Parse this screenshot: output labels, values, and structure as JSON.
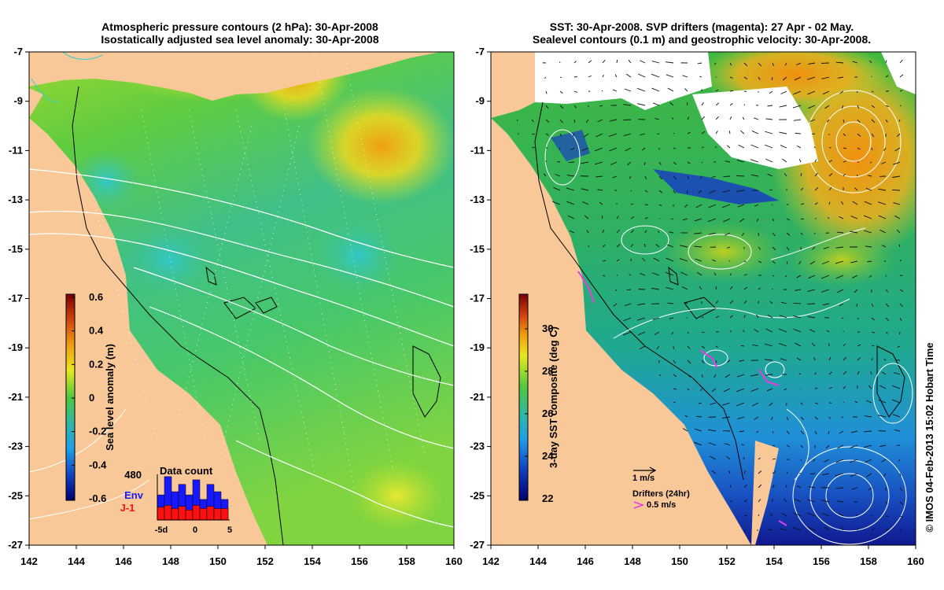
{
  "left_panel": {
    "title_line1": "Atmospheric pressure contours (2 hPa): 30-Apr-2008",
    "title_line2": "Isostatically adjusted sea level anomaly: 30-Apr-2008",
    "colorbar": {
      "label": "Sea level anomaly (m)",
      "ticks": [
        "0.6",
        "0.4",
        "0.2",
        "0",
        "-0.2",
        "-0.4",
        "-0.6"
      ]
    },
    "histogram": {
      "title": "Data count",
      "max_label": "480",
      "legend_env": "Env",
      "legend_j1": "J-1",
      "x_ticks": [
        "-5d",
        "0",
        "5"
      ],
      "env_color": "#1818ff",
      "j1_color": "#ff1010"
    }
  },
  "right_panel": {
    "title_line1": "SST: 30-Apr-2008. SVP drifters (magenta): 27 Apr - 02 May.",
    "title_line2": "Sealevel contours (0.1 m) and geostrophic velocity: 30-Apr-2008.",
    "colorbar": {
      "label": "3-day SST composite (deg C)",
      "ticks": [
        "30",
        "28",
        "26",
        "24",
        "22"
      ]
    },
    "velocity_key": "1 m/s",
    "drifter_key_title": "Drifters (24hr)",
    "drifter_key_value": "0.5 m/s"
  },
  "x_ticks": [
    "142",
    "144",
    "146",
    "148",
    "150",
    "152",
    "154",
    "156",
    "158",
    "160"
  ],
  "y_ticks": [
    "-7",
    "-9",
    "-11",
    "-13",
    "-15",
    "-17",
    "-19",
    "-21",
    "-23",
    "-25",
    "-27"
  ],
  "credit": "© IMOS 04-Feb-2013 15:02 Hobart Time",
  "colors": {
    "land": "#f8c898",
    "ocean_ssl": "#40c050",
    "ocean_sst": "#30b070",
    "contour_white": "#ffffff",
    "drifter": "#e040e0"
  }
}
